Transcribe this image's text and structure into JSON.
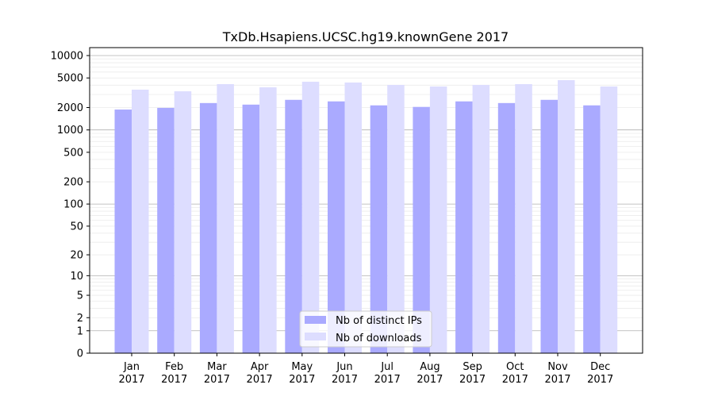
{
  "chart_data": {
    "type": "bar",
    "title": "TxDb.Hsapiens.UCSC.hg19.knownGene 2017",
    "xlabel": "",
    "ylabel": "",
    "yscale": "log(x+1)",
    "ylim": [
      0,
      12800
    ],
    "yticks": [
      0,
      1,
      2,
      5,
      10,
      20,
      50,
      100,
      200,
      500,
      1000,
      2000,
      5000,
      10000
    ],
    "grid": true,
    "legend_position": "bottom-center",
    "categories": [
      "Jan\n2017",
      "Feb\n2017",
      "Mar\n2017",
      "Apr\n2017",
      "May\n2017",
      "Jun\n2017",
      "Jul\n2017",
      "Aug\n2017",
      "Sep\n2017",
      "Oct\n2017",
      "Nov\n2017",
      "Dec\n2017"
    ],
    "series": [
      {
        "name": "Nb of distinct IPs",
        "color": "#aaaaff",
        "values": [
          1880,
          1980,
          2300,
          2190,
          2540,
          2420,
          2140,
          2040,
          2420,
          2300,
          2540,
          2140
        ]
      },
      {
        "name": "Nb of downloads",
        "color": "#ddddff",
        "values": [
          3480,
          3310,
          4130,
          3740,
          4450,
          4340,
          4030,
          3840,
          4030,
          4130,
          4670,
          3840
        ]
      }
    ]
  }
}
